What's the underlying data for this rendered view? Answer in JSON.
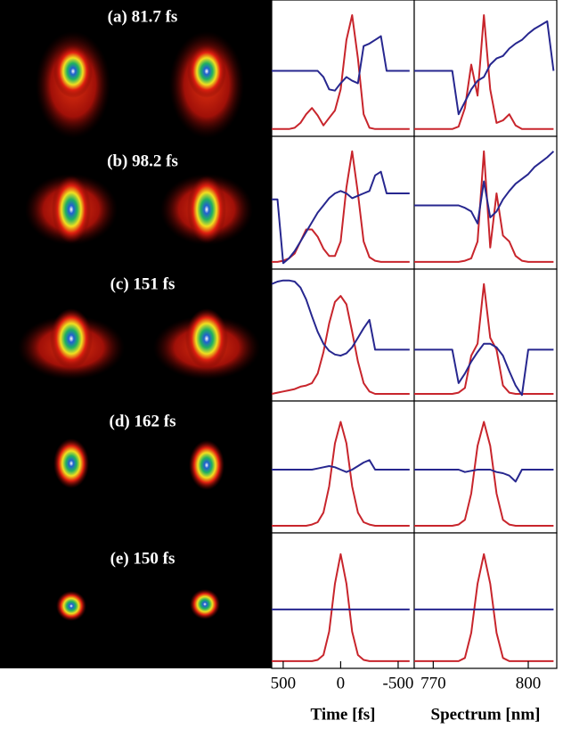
{
  "image_labels": [
    "(a) 81.7 fs",
    "(b) 98.2 fs",
    "(c) 151 fs",
    "(d) 162 fs",
    "(e) 150 fs"
  ],
  "chart_data": [
    {
      "type": "line",
      "x": [
        600,
        550,
        500,
        450,
        400,
        350,
        300,
        250,
        200,
        150,
        100,
        50,
        0,
        -50,
        -100,
        -150,
        -200,
        -250,
        -300,
        -350,
        -400,
        -450,
        -500,
        -550,
        -600
      ],
      "xlim": [
        600,
        -640
      ],
      "ylim": [
        0,
        1
      ],
      "series": [
        {
          "color": "#c8252c",
          "values": [
            0.03,
            0.03,
            0.03,
            0.03,
            0.04,
            0.08,
            0.15,
            0.2,
            0.14,
            0.06,
            0.12,
            0.18,
            0.35,
            0.75,
            0.95,
            0.6,
            0.15,
            0.04,
            0.03,
            0.03,
            0.03,
            0.03,
            0.03,
            0.03,
            0.03
          ]
        },
        {
          "color": "#27278f",
          "values": [
            0.5,
            0.5,
            0.5,
            0.5,
            0.5,
            0.5,
            0.5,
            0.5,
            0.5,
            0.45,
            0.35,
            0.34,
            0.4,
            0.45,
            0.42,
            0.4,
            0.7,
            0.72,
            0.75,
            0.78,
            0.5,
            0.5,
            0.5,
            0.5,
            0.5
          ]
        }
      ]
    },
    {
      "type": "line",
      "x": [
        600,
        550,
        500,
        450,
        400,
        350,
        300,
        250,
        200,
        150,
        100,
        50,
        0,
        -50,
        -100,
        -150,
        -200,
        -250,
        -300,
        -350,
        -400,
        -450,
        -500,
        -550,
        -600
      ],
      "xlim": [
        600,
        -640
      ],
      "ylim": [
        0,
        1
      ],
      "series": [
        {
          "color": "#c8252c",
          "values": [
            0.03,
            0.03,
            0.04,
            0.06,
            0.1,
            0.2,
            0.3,
            0.3,
            0.24,
            0.14,
            0.08,
            0.08,
            0.2,
            0.65,
            0.95,
            0.6,
            0.2,
            0.07,
            0.04,
            0.03,
            0.03,
            0.03,
            0.03,
            0.03,
            0.03
          ]
        },
        {
          "color": "#27278f",
          "values": [
            0.55,
            0.55,
            0.02,
            0.06,
            0.12,
            0.2,
            0.28,
            0.36,
            0.44,
            0.5,
            0.56,
            0.6,
            0.62,
            0.6,
            0.56,
            0.58,
            0.6,
            0.62,
            0.75,
            0.78,
            0.6,
            0.6,
            0.6,
            0.6,
            0.6
          ]
        }
      ]
    },
    {
      "type": "line",
      "x": [
        600,
        550,
        500,
        450,
        400,
        350,
        300,
        250,
        200,
        150,
        100,
        50,
        0,
        -50,
        -100,
        -150,
        -200,
        -250,
        -300,
        -350,
        -400,
        -450,
        -500,
        -550,
        -600
      ],
      "xlim": [
        600,
        -640
      ],
      "ylim": [
        0,
        1
      ],
      "series": [
        {
          "color": "#c8252c",
          "values": [
            0.03,
            0.04,
            0.05,
            0.06,
            0.07,
            0.09,
            0.1,
            0.12,
            0.2,
            0.38,
            0.62,
            0.8,
            0.85,
            0.78,
            0.55,
            0.3,
            0.12,
            0.05,
            0.03,
            0.03,
            0.03,
            0.03,
            0.03,
            0.03,
            0.03
          ]
        },
        {
          "color": "#27278f",
          "values": [
            0.95,
            0.97,
            0.98,
            0.98,
            0.97,
            0.92,
            0.82,
            0.68,
            0.55,
            0.45,
            0.39,
            0.36,
            0.35,
            0.37,
            0.42,
            0.5,
            0.58,
            0.65,
            0.4,
            0.4,
            0.4,
            0.4,
            0.4,
            0.4,
            0.4
          ]
        }
      ]
    },
    {
      "type": "line",
      "x": [
        600,
        550,
        500,
        450,
        400,
        350,
        300,
        250,
        200,
        150,
        100,
        50,
        0,
        -50,
        -100,
        -150,
        -200,
        -250,
        -300,
        -350,
        -400,
        -450,
        -500,
        -550,
        -600
      ],
      "xlim": [
        600,
        -640
      ],
      "ylim": [
        0,
        1
      ],
      "series": [
        {
          "color": "#c8252c",
          "values": [
            0.03,
            0.03,
            0.03,
            0.03,
            0.03,
            0.03,
            0.03,
            0.04,
            0.06,
            0.14,
            0.36,
            0.72,
            0.9,
            0.72,
            0.36,
            0.14,
            0.06,
            0.04,
            0.03,
            0.03,
            0.03,
            0.03,
            0.03,
            0.03,
            0.03
          ]
        },
        {
          "color": "#27278f",
          "values": [
            0.5,
            0.5,
            0.5,
            0.5,
            0.5,
            0.5,
            0.5,
            0.5,
            0.51,
            0.52,
            0.53,
            0.52,
            0.5,
            0.48,
            0.5,
            0.53,
            0.56,
            0.58,
            0.5,
            0.5,
            0.5,
            0.5,
            0.5,
            0.5,
            0.5
          ]
        }
      ]
    },
    {
      "type": "line",
      "x": [
        600,
        550,
        500,
        450,
        400,
        350,
        300,
        250,
        200,
        150,
        100,
        50,
        0,
        -50,
        -100,
        -150,
        -200,
        -250,
        -300,
        -350,
        -400,
        -450,
        -500,
        -550,
        -600
      ],
      "xlim": [
        600,
        -640
      ],
      "ylim": [
        0,
        1
      ],
      "series": [
        {
          "color": "#c8252c",
          "values": [
            0.03,
            0.03,
            0.03,
            0.03,
            0.03,
            0.03,
            0.03,
            0.03,
            0.04,
            0.08,
            0.27,
            0.66,
            0.9,
            0.66,
            0.27,
            0.08,
            0.04,
            0.03,
            0.03,
            0.03,
            0.03,
            0.03,
            0.03,
            0.03,
            0.03
          ]
        },
        {
          "color": "#27278f",
          "values": [
            0.45,
            0.45,
            0.45,
            0.45,
            0.45,
            0.45,
            0.45,
            0.45,
            0.45,
            0.45,
            0.45,
            0.45,
            0.45,
            0.45,
            0.45,
            0.45,
            0.45,
            0.45,
            0.45,
            0.45,
            0.45,
            0.45,
            0.45,
            0.45,
            0.45
          ]
        }
      ],
      "xticks": [
        500,
        0,
        -500
      ],
      "xlabel": "Time [fs]"
    },
    {
      "type": "line",
      "x": [
        764,
        766,
        768,
        770,
        772,
        774,
        776,
        778,
        780,
        782,
        784,
        786,
        788,
        790,
        792,
        794,
        796,
        798,
        800,
        802,
        804,
        806,
        808
      ],
      "xlim": [
        764,
        809
      ],
      "ylim": [
        0,
        1
      ],
      "series": [
        {
          "color": "#c8252c",
          "values": [
            0.03,
            0.03,
            0.03,
            0.03,
            0.03,
            0.03,
            0.03,
            0.05,
            0.2,
            0.55,
            0.3,
            0.95,
            0.35,
            0.08,
            0.1,
            0.15,
            0.06,
            0.03,
            0.03,
            0.03,
            0.03,
            0.03,
            0.03
          ]
        },
        {
          "color": "#27278f",
          "values": [
            0.5,
            0.5,
            0.5,
            0.5,
            0.5,
            0.5,
            0.5,
            0.15,
            0.25,
            0.35,
            0.42,
            0.45,
            0.55,
            0.6,
            0.62,
            0.68,
            0.72,
            0.75,
            0.8,
            0.84,
            0.87,
            0.9,
            0.5
          ]
        }
      ]
    },
    {
      "type": "line",
      "x": [
        764,
        766,
        768,
        770,
        772,
        774,
        776,
        778,
        780,
        782,
        784,
        786,
        788,
        790,
        792,
        794,
        796,
        798,
        800,
        802,
        804,
        806,
        808
      ],
      "xlim": [
        764,
        809
      ],
      "ylim": [
        0,
        1
      ],
      "series": [
        {
          "color": "#c8252c",
          "values": [
            0.03,
            0.03,
            0.03,
            0.03,
            0.03,
            0.03,
            0.03,
            0.03,
            0.04,
            0.06,
            0.2,
            0.95,
            0.15,
            0.6,
            0.25,
            0.2,
            0.08,
            0.04,
            0.03,
            0.03,
            0.03,
            0.03,
            0.03
          ]
        },
        {
          "color": "#27278f",
          "values": [
            0.5,
            0.5,
            0.5,
            0.5,
            0.5,
            0.5,
            0.5,
            0.5,
            0.48,
            0.45,
            0.35,
            0.7,
            0.4,
            0.45,
            0.55,
            0.62,
            0.68,
            0.72,
            0.76,
            0.82,
            0.86,
            0.9,
            0.95
          ]
        }
      ]
    },
    {
      "type": "line",
      "x": [
        764,
        766,
        768,
        770,
        772,
        774,
        776,
        778,
        780,
        782,
        784,
        786,
        788,
        790,
        792,
        794,
        796,
        798,
        800,
        802,
        804,
        806,
        808
      ],
      "xlim": [
        764,
        809
      ],
      "ylim": [
        0,
        1
      ],
      "series": [
        {
          "color": "#c8252c",
          "values": [
            0.03,
            0.03,
            0.03,
            0.03,
            0.03,
            0.03,
            0.03,
            0.04,
            0.08,
            0.35,
            0.45,
            0.95,
            0.5,
            0.4,
            0.1,
            0.04,
            0.03,
            0.03,
            0.03,
            0.03,
            0.03,
            0.03,
            0.03
          ]
        },
        {
          "color": "#27278f",
          "values": [
            0.4,
            0.4,
            0.4,
            0.4,
            0.4,
            0.4,
            0.4,
            0.12,
            0.2,
            0.3,
            0.38,
            0.45,
            0.45,
            0.42,
            0.35,
            0.22,
            0.1,
            0.02,
            0.4,
            0.4,
            0.4,
            0.4,
            0.4
          ]
        }
      ]
    },
    {
      "type": "line",
      "x": [
        764,
        766,
        768,
        770,
        772,
        774,
        776,
        778,
        780,
        782,
        784,
        786,
        788,
        790,
        792,
        794,
        796,
        798,
        800,
        802,
        804,
        806,
        808
      ],
      "xlim": [
        764,
        809
      ],
      "ylim": [
        0,
        1
      ],
      "series": [
        {
          "color": "#c8252c",
          "values": [
            0.03,
            0.03,
            0.03,
            0.03,
            0.03,
            0.03,
            0.03,
            0.04,
            0.08,
            0.3,
            0.7,
            0.9,
            0.7,
            0.3,
            0.08,
            0.04,
            0.03,
            0.03,
            0.03,
            0.03,
            0.03,
            0.03,
            0.03
          ]
        },
        {
          "color": "#27278f",
          "values": [
            0.5,
            0.5,
            0.5,
            0.5,
            0.5,
            0.5,
            0.5,
            0.5,
            0.48,
            0.49,
            0.5,
            0.5,
            0.5,
            0.48,
            0.47,
            0.45,
            0.4,
            0.5,
            0.5,
            0.5,
            0.5,
            0.5,
            0.5
          ]
        }
      ]
    },
    {
      "type": "line",
      "x": [
        764,
        766,
        768,
        770,
        772,
        774,
        776,
        778,
        780,
        782,
        784,
        786,
        788,
        790,
        792,
        794,
        796,
        798,
        800,
        802,
        804,
        806,
        808
      ],
      "xlim": [
        764,
        809
      ],
      "ylim": [
        0,
        1
      ],
      "series": [
        {
          "color": "#c8252c",
          "values": [
            0.03,
            0.03,
            0.03,
            0.03,
            0.03,
            0.03,
            0.03,
            0.03,
            0.056,
            0.26,
            0.66,
            0.9,
            0.66,
            0.26,
            0.056,
            0.03,
            0.03,
            0.03,
            0.03,
            0.03,
            0.03,
            0.03,
            0.03
          ]
        },
        {
          "color": "#27278f",
          "values": [
            0.45,
            0.45,
            0.45,
            0.45,
            0.45,
            0.45,
            0.45,
            0.45,
            0.45,
            0.45,
            0.45,
            0.45,
            0.45,
            0.45,
            0.45,
            0.45,
            0.45,
            0.45,
            0.45,
            0.45,
            0.45,
            0.45,
            0.45
          ]
        }
      ],
      "xticks": [
        770,
        800
      ],
      "xlabel": "Spectrum [nm]"
    }
  ]
}
